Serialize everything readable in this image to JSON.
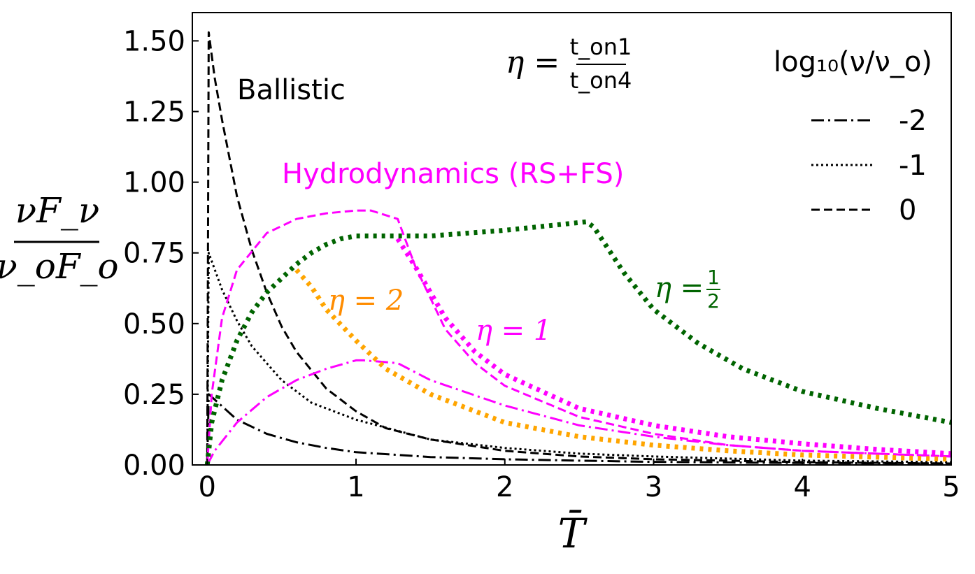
{
  "chart_data": {
    "type": "line",
    "xlabel": "T̄",
    "ylabel": {
      "numerator": "νF_ν",
      "denominator": "ν_oF_o"
    },
    "xlim": [
      -0.1,
      5
    ],
    "ylim": [
      0,
      1.6
    ],
    "xticks": [
      "0",
      "1",
      "2",
      "3",
      "4",
      "5"
    ],
    "yticks": [
      "0.00",
      "0.25",
      "0.50",
      "0.75",
      "1.00",
      "1.25",
      "1.50"
    ],
    "grid": false,
    "legend": {
      "title": "log₁₀(ν/ν_o)",
      "position": "top-right",
      "entries": [
        {
          "label": "-2",
          "style": "dashdot"
        },
        {
          "label": "-1",
          "style": "dotted"
        },
        {
          "label": "0",
          "style": "dashed"
        }
      ]
    },
    "colors": {
      "ballistic": "#000000",
      "eta1": "#ff00ff",
      "eta2": "#ffa500",
      "eta_half": "#006400"
    },
    "annotations": {
      "eta_definition": {
        "lhs": "η =",
        "numerator": "t_on1",
        "denominator": "t_on4"
      },
      "ballistic": "Ballistic",
      "hydro": "Hydrodynamics (RS+FS)",
      "eta2": "η = 2",
      "eta1": "η = 1",
      "eta_half": {
        "lhs": "η =",
        "numerator": "1",
        "denominator": "2"
      }
    },
    "series": [
      {
        "group": "ballistic",
        "log_nu": "0",
        "style": "dashed",
        "color": "#000000",
        "x": [
          0,
          0.01,
          0.05,
          0.1,
          0.2,
          0.3,
          0.4,
          0.5,
          0.6,
          0.8,
          1.0,
          1.2,
          1.5,
          2.0,
          2.5,
          3.0,
          3.5,
          4.0,
          5.0
        ],
        "y": [
          0,
          1.53,
          1.37,
          1.22,
          0.95,
          0.76,
          0.61,
          0.49,
          0.4,
          0.27,
          0.19,
          0.13,
          0.09,
          0.05,
          0.03,
          0.02,
          0.015,
          0.01,
          0.005
        ]
      },
      {
        "group": "ballistic",
        "log_nu": "-1",
        "style": "dotted",
        "color": "#000000",
        "x": [
          0,
          0.01,
          0.1,
          0.2,
          0.3,
          0.5,
          0.7,
          1.0,
          1.5,
          2.0,
          2.5,
          3.0,
          4.0,
          5.0
        ],
        "y": [
          0,
          0.75,
          0.62,
          0.51,
          0.42,
          0.3,
          0.22,
          0.16,
          0.09,
          0.06,
          0.04,
          0.03,
          0.015,
          0.01
        ]
      },
      {
        "group": "ballistic",
        "log_nu": "-2",
        "style": "dashdot",
        "color": "#000000",
        "x": [
          0,
          0.01,
          0.2,
          0.4,
          0.6,
          0.8,
          1.0,
          1.5,
          2.0,
          2.5,
          3.0,
          4.0,
          5.0
        ],
        "y": [
          0,
          0.25,
          0.16,
          0.11,
          0.08,
          0.06,
          0.045,
          0.028,
          0.02,
          0.015,
          0.011,
          0.007,
          0.005
        ]
      },
      {
        "group": "eta1",
        "log_nu": "0",
        "style": "dashed",
        "color": "#ff00ff",
        "x": [
          0,
          0.03,
          0.1,
          0.2,
          0.4,
          0.6,
          0.8,
          1.0,
          1.1,
          1.28,
          1.4,
          1.6,
          1.8,
          2.0,
          2.5,
          3.0,
          3.5,
          4.0,
          5.0
        ],
        "y": [
          0,
          0.25,
          0.52,
          0.69,
          0.82,
          0.87,
          0.89,
          0.9,
          0.9,
          0.87,
          0.7,
          0.48,
          0.36,
          0.28,
          0.17,
          0.11,
          0.07,
          0.05,
          0.03
        ]
      },
      {
        "group": "eta1",
        "log_nu": "-2",
        "style": "dashdot",
        "color": "#ff00ff",
        "x": [
          0,
          0.05,
          0.2,
          0.4,
          0.6,
          0.8,
          1.0,
          1.05,
          1.28,
          1.5,
          2.0,
          2.5,
          3.0,
          3.5,
          4.0,
          5.0
        ],
        "y": [
          0,
          0.05,
          0.15,
          0.24,
          0.3,
          0.34,
          0.37,
          0.37,
          0.36,
          0.3,
          0.21,
          0.14,
          0.1,
          0.07,
          0.05,
          0.03
        ]
      },
      {
        "group": "eta1",
        "log_nu": "0",
        "style": "thick-dotted",
        "color": "#ff00ff",
        "x": [
          1.28,
          1.4,
          1.6,
          1.8,
          2.0,
          2.5,
          3.0,
          3.5,
          4.0,
          4.5,
          5.0
        ],
        "y": [
          0.8,
          0.7,
          0.52,
          0.4,
          0.32,
          0.2,
          0.14,
          0.1,
          0.075,
          0.055,
          0.04
        ]
      },
      {
        "group": "eta2",
        "log_nu": "0",
        "style": "thick-dotted",
        "color": "#ffa500",
        "x": [
          0.6,
          0.7,
          0.8,
          1.0,
          1.2,
          1.5,
          2.0,
          2.5,
          3.0,
          3.5,
          4.0,
          5.0
        ],
        "y": [
          0.69,
          0.63,
          0.55,
          0.44,
          0.34,
          0.25,
          0.15,
          0.1,
          0.07,
          0.05,
          0.035,
          0.02
        ]
      },
      {
        "group": "eta_half",
        "log_nu": "0",
        "style": "thick-dotted",
        "color": "#006400",
        "x": [
          0,
          0.03,
          0.1,
          0.2,
          0.3,
          0.4,
          0.5,
          0.6,
          0.7,
          0.8,
          0.9,
          1.0,
          1.5,
          2.0,
          2.55,
          2.6,
          2.8,
          3.0,
          3.3,
          3.6,
          4.0,
          4.5,
          5.0
        ],
        "y": [
          0,
          0.15,
          0.3,
          0.44,
          0.54,
          0.61,
          0.66,
          0.71,
          0.75,
          0.78,
          0.8,
          0.81,
          0.81,
          0.83,
          0.86,
          0.84,
          0.68,
          0.55,
          0.43,
          0.34,
          0.26,
          0.2,
          0.15
        ]
      }
    ]
  }
}
